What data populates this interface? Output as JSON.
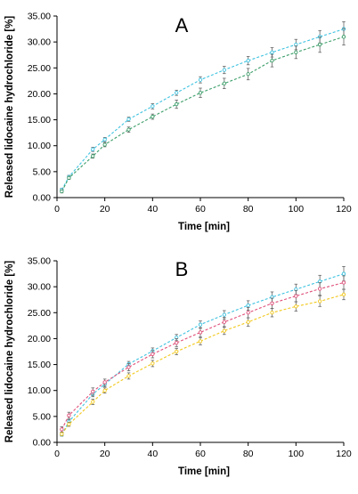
{
  "chart_data": [
    {
      "type": "line",
      "panel_label": "A",
      "xlabel": "Time [min]",
      "ylabel": "Released lidocaine hydrochloride [%]",
      "xlim": [
        0,
        120
      ],
      "ylim": [
        0,
        35
      ],
      "xticks": [
        0,
        20,
        40,
        60,
        80,
        100,
        120
      ],
      "yticks": [
        "0.00",
        "5.00",
        "10.00",
        "15.00",
        "20.00",
        "25.00",
        "30.00",
        "35.00"
      ],
      "grid": false,
      "legend": "none",
      "x": [
        2,
        5,
        15,
        20,
        30,
        40,
        50,
        60,
        70,
        80,
        90,
        100,
        110,
        120
      ],
      "series": [
        {
          "color": "#3fc3e0",
          "values": [
            1.5,
            4.0,
            9.3,
            11.2,
            15.1,
            17.6,
            20.2,
            22.7,
            24.6,
            26.4,
            28.0,
            29.5,
            31.0,
            32.5
          ],
          "errors": [
            0.3,
            0.3,
            0.4,
            0.4,
            0.4,
            0.5,
            0.5,
            0.6,
            0.7,
            0.8,
            0.9,
            1.0,
            1.2,
            1.4
          ]
        },
        {
          "color": "#3c9e6a",
          "values": [
            1.2,
            3.8,
            8.0,
            10.2,
            13.1,
            15.6,
            18.0,
            20.2,
            22.0,
            23.8,
            26.4,
            28.0,
            29.5,
            31.0
          ],
          "errors": [
            0.3,
            0.3,
            0.4,
            0.4,
            0.5,
            0.5,
            0.8,
            0.9,
            1.0,
            1.1,
            1.2,
            1.2,
            1.5,
            1.6
          ]
        }
      ]
    },
    {
      "type": "line",
      "panel_label": "B",
      "xlabel": "Time [min]",
      "ylabel": "Released lidocaine hydrochloride [%]",
      "xlim": [
        0,
        120
      ],
      "ylim": [
        0,
        35
      ],
      "xticks": [
        0,
        20,
        40,
        60,
        80,
        100,
        120
      ],
      "yticks": [
        "0.00",
        "5.00",
        "10.00",
        "15.00",
        "20.00",
        "25.00",
        "30.00",
        "35.00"
      ],
      "grid": false,
      "legend": "none",
      "x": [
        2,
        5,
        15,
        20,
        30,
        40,
        50,
        60,
        70,
        80,
        90,
        100,
        110,
        120
      ],
      "series": [
        {
          "color": "#3fc3e0",
          "values": [
            1.5,
            4.0,
            9.3,
            11.2,
            15.1,
            17.6,
            20.2,
            22.7,
            24.6,
            26.4,
            28.0,
            29.5,
            31.0,
            32.5
          ],
          "errors": [
            0.3,
            0.4,
            0.5,
            0.5,
            0.5,
            0.6,
            0.6,
            0.7,
            0.8,
            0.9,
            1.0,
            1.0,
            1.2,
            1.4
          ]
        },
        {
          "color": "#e0507a",
          "values": [
            2.5,
            5.2,
            9.8,
            11.6,
            14.5,
            17.0,
            19.2,
            21.2,
            23.2,
            25.0,
            26.8,
            28.2,
            29.6,
            30.8
          ],
          "errors": [
            0.5,
            0.6,
            0.7,
            0.6,
            0.7,
            0.7,
            0.8,
            0.9,
            0.9,
            1.0,
            1.0,
            1.1,
            1.2,
            1.3
          ]
        },
        {
          "color": "#f2c81e",
          "values": [
            1.6,
            3.5,
            7.8,
            10.0,
            12.8,
            15.2,
            17.5,
            19.5,
            21.5,
            23.2,
            25.0,
            26.2,
            27.2,
            28.5
          ],
          "errors": [
            0.3,
            0.4,
            0.5,
            0.5,
            0.6,
            0.6,
            0.6,
            0.7,
            0.7,
            0.8,
            0.8,
            0.9,
            1.0,
            1.0
          ]
        }
      ]
    }
  ]
}
